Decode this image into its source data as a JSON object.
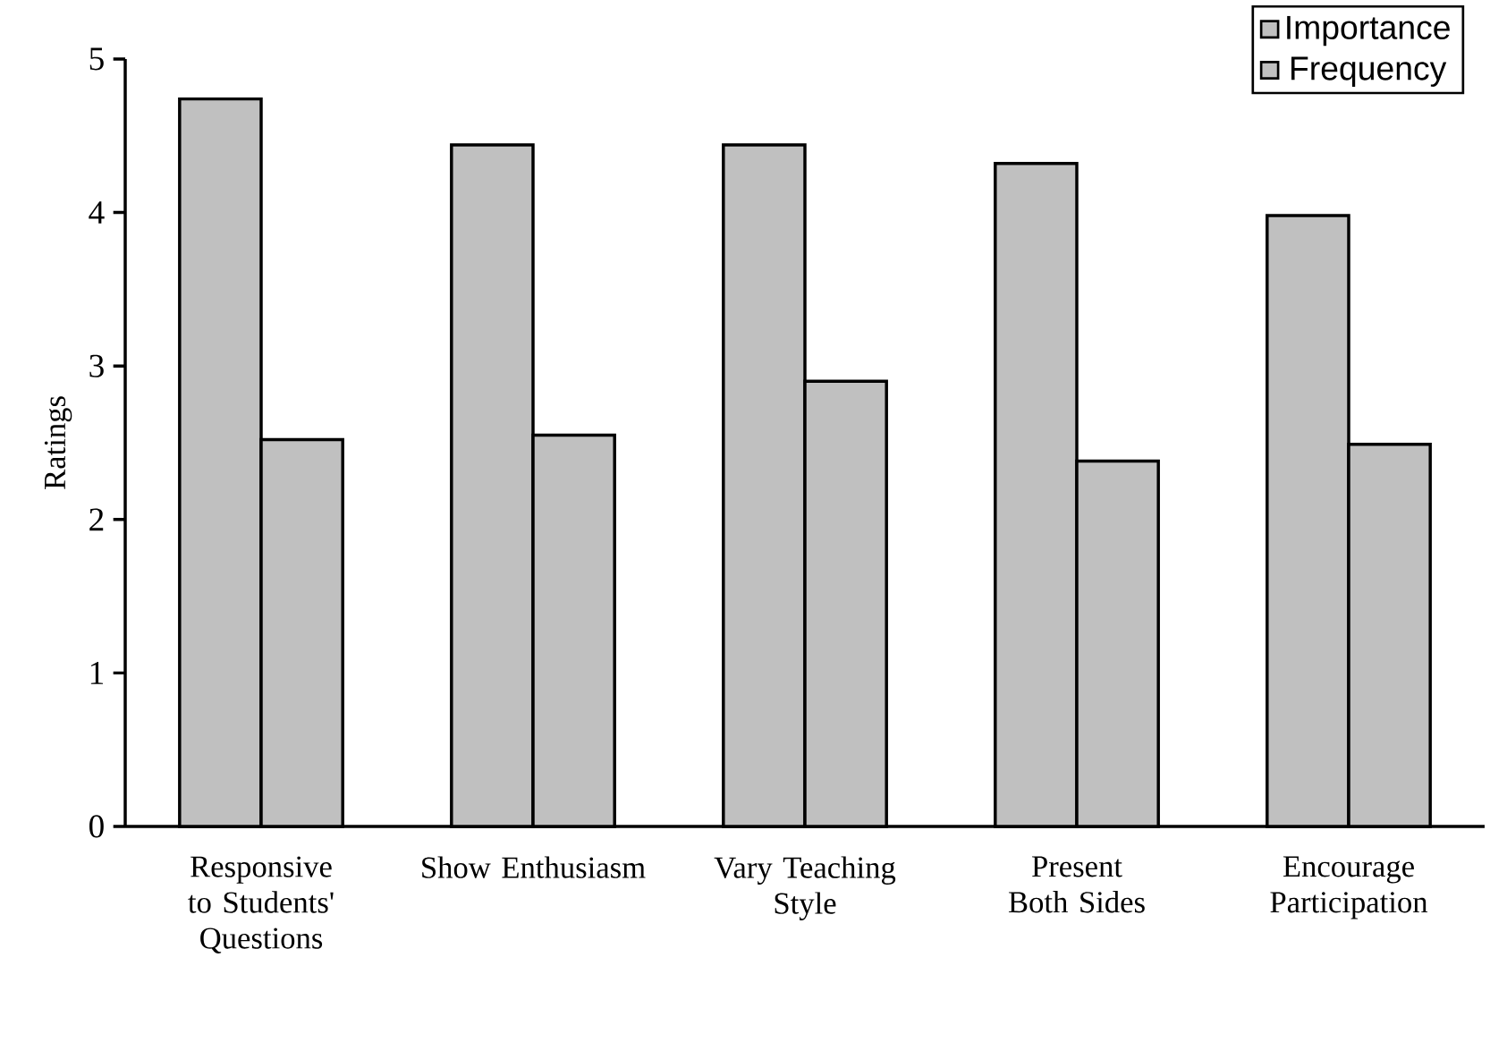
{
  "chart_data": {
    "type": "bar",
    "ylabel": "Ratings",
    "categories": [
      "Responsive to Students' Questions",
      "Show Enthusiasm",
      "Vary Teaching Style",
      "Present Both Sides",
      "Encourage Participation"
    ],
    "series": [
      {
        "name": "Importance",
        "color": "#c0c0c0",
        "values": [
          4.74,
          4.44,
          4.44,
          4.32,
          3.98
        ]
      },
      {
        "name": "Frequency",
        "color": "#c0c0c0",
        "values": [
          2.52,
          2.55,
          2.9,
          2.38,
          2.49
        ]
      }
    ],
    "ylim": [
      0,
      5
    ],
    "yticks": [
      0,
      1,
      2,
      3,
      4,
      5
    ],
    "legend": "top right"
  }
}
